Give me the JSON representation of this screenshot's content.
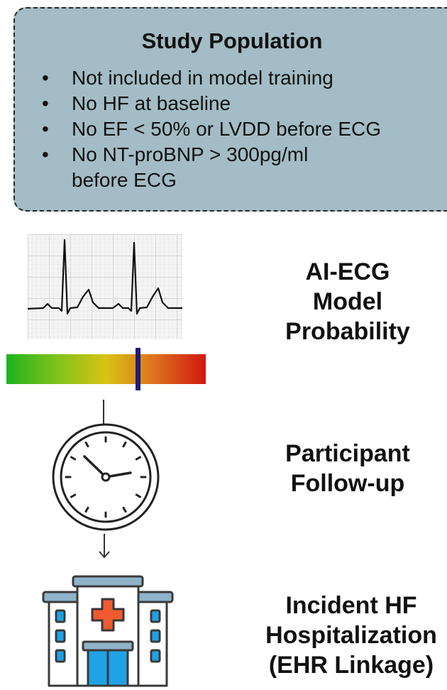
{
  "population": {
    "title": "Study Population",
    "bullet": "•",
    "items": [
      "Not included in model training",
      "No HF at baseline",
      "No EF < 50% or LVDD before ECG",
      "No NT-proBNP > 300pg/ml before ECG"
    ]
  },
  "steps": {
    "model": {
      "line1": "AI-ECG",
      "line2": "Model",
      "line3": "Probability"
    },
    "followup": {
      "line1": "Participant",
      "line2": "Follow-up"
    },
    "outcome": {
      "line1": "Incident HF",
      "line2": "Hospitalization",
      "line3": "(EHR Linkage)"
    }
  },
  "probability_marker": 0.66,
  "icons": [
    "ecg-strip-icon",
    "probability-gradient-bar",
    "clock-icon",
    "down-arrow-icon",
    "hospital-icon"
  ],
  "colors": {
    "box_fill": "#a3bcc5",
    "gradient_low": "#1db31d",
    "gradient_mid": "#d8c315",
    "gradient_high": "#d0180f",
    "marker": "#1d1d78",
    "hospital_blue": "#1ea3e6",
    "cross_red": "#f05a2e"
  }
}
